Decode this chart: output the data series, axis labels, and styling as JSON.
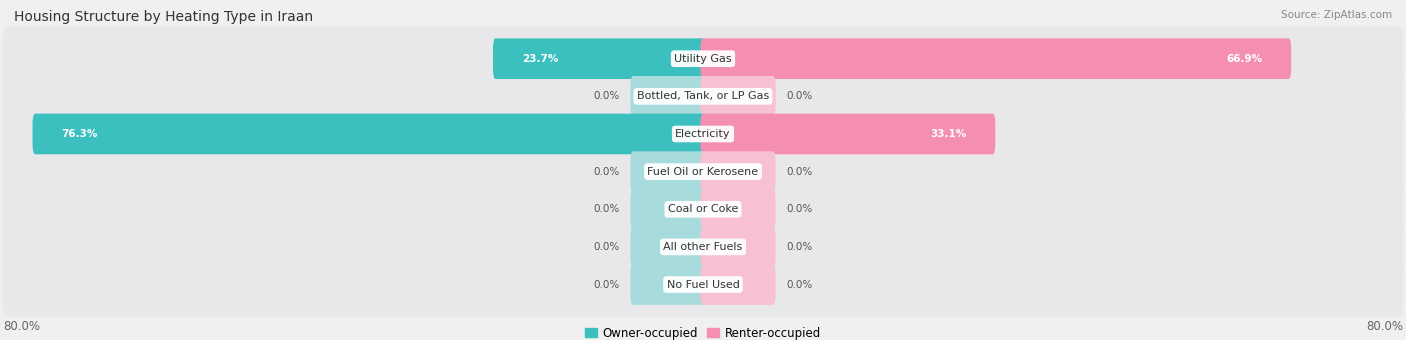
{
  "title": "Housing Structure by Heating Type in Iraan",
  "source": "Source: ZipAtlas.com",
  "categories": [
    "Utility Gas",
    "Bottled, Tank, or LP Gas",
    "Electricity",
    "Fuel Oil or Kerosene",
    "Coal or Coke",
    "All other Fuels",
    "No Fuel Used"
  ],
  "owner_values": [
    23.7,
    0.0,
    76.3,
    0.0,
    0.0,
    0.0,
    0.0
  ],
  "renter_values": [
    66.9,
    0.0,
    33.1,
    0.0,
    0.0,
    0.0,
    0.0
  ],
  "owner_color": "#3BBFBF",
  "renter_color": "#F48FB1",
  "owner_color_light": "#A8DCDC",
  "renter_color_light": "#F7C0D4",
  "owner_label": "Owner-occupied",
  "renter_label": "Renter-occupied",
  "axis_max": 80.0,
  "axis_label_left": "80.0%",
  "axis_label_right": "80.0%",
  "title_fontsize": 10,
  "source_fontsize": 7.5,
  "legend_fontsize": 8.5,
  "category_fontsize": 8,
  "value_fontsize": 7.5,
  "background_color": "#f0f0f0",
  "row_bg_color": "#e8e8ea",
  "zero_stub": 8.0,
  "nonzero_label_threshold": 10.0
}
